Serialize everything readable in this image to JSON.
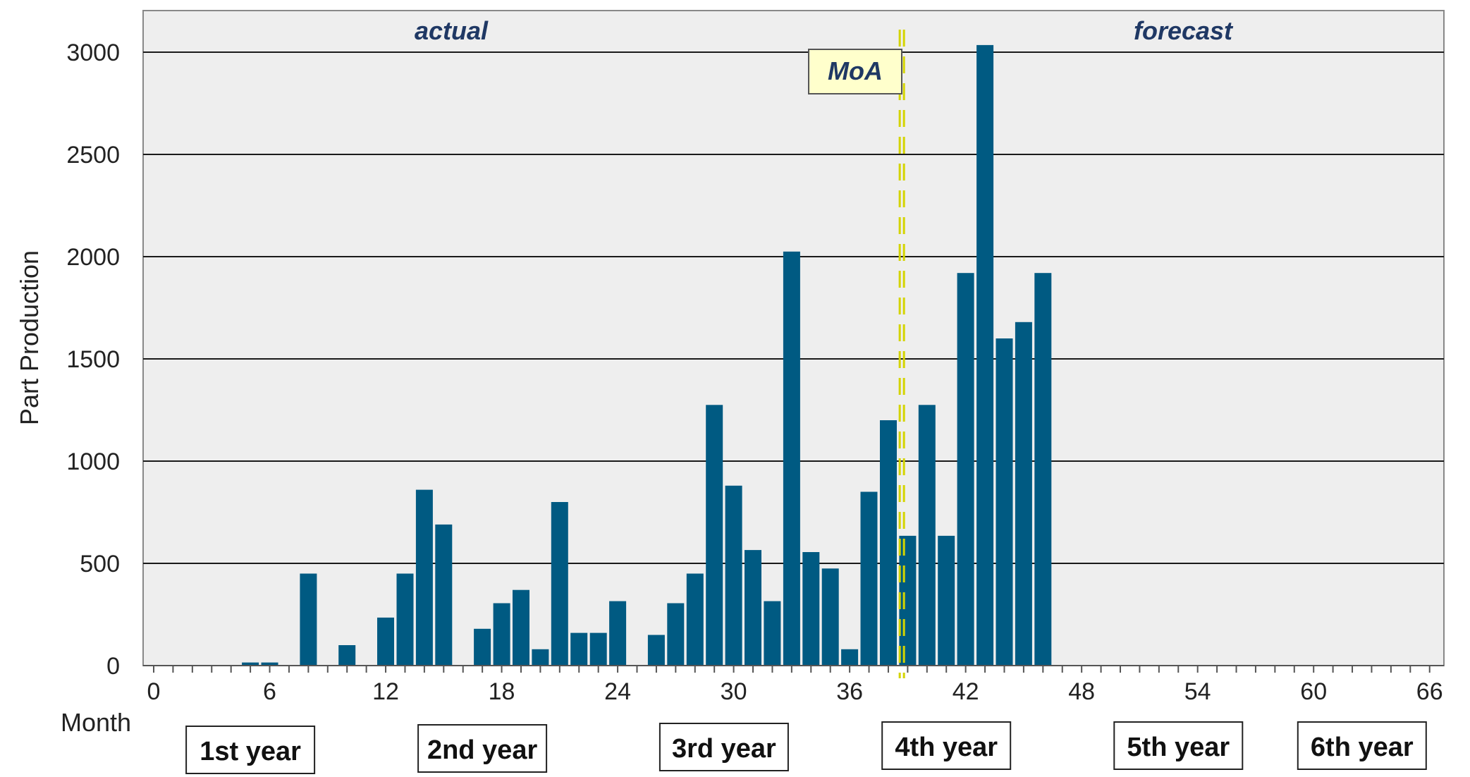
{
  "chart_data": {
    "type": "bar",
    "title": "",
    "xlabel": "Month",
    "ylabel": "Part Production",
    "xlim": [
      0,
      67
    ],
    "ylim": [
      0,
      3200
    ],
    "x_ticks": [
      0,
      6,
      12,
      18,
      24,
      30,
      36,
      42,
      48,
      54,
      60,
      66
    ],
    "y_ticks": [
      0,
      500,
      1000,
      1500,
      2000,
      2500,
      3000
    ],
    "grid": "horizontal",
    "bar_color": "#005a82",
    "series": [
      {
        "name": "Part Production",
        "months": [
          5,
          6,
          8,
          10,
          12,
          13,
          14,
          15,
          17,
          18,
          19,
          20,
          21,
          22,
          23,
          24,
          26,
          27,
          28,
          29,
          30,
          31,
          32,
          33,
          34,
          35,
          36,
          37,
          38,
          39,
          40,
          41,
          42,
          43,
          44,
          45,
          46
        ],
        "values": [
          15,
          15,
          450,
          100,
          235,
          450,
          860,
          690,
          180,
          305,
          370,
          80,
          800,
          160,
          160,
          315,
          150,
          305,
          450,
          1275,
          880,
          565,
          315,
          2025,
          555,
          475,
          80,
          850,
          1200,
          635,
          1275,
          635,
          1920,
          3035,
          1600,
          1680,
          1920
        ]
      }
    ],
    "regions": {
      "left": "actual",
      "right": "forecast"
    },
    "marker": {
      "label": "MoA",
      "month": 38.7,
      "color": "#d4d400"
    },
    "years": [
      {
        "label": "1st year",
        "center_month": 5
      },
      {
        "label": "2nd year",
        "center_month": 17
      },
      {
        "label": "3rd year",
        "center_month": 29.5
      },
      {
        "label": "4th year",
        "center_month": 41
      },
      {
        "label": "5th year",
        "center_month": 53
      },
      {
        "label": "6th year",
        "center_month": 62.5
      }
    ]
  }
}
